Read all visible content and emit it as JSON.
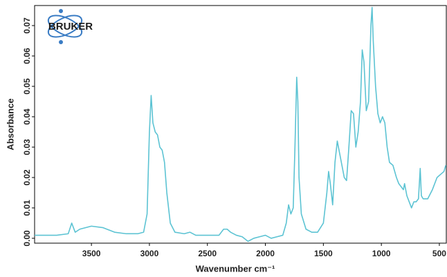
{
  "logo": "BRUKER",
  "chart_data": {
    "type": "line",
    "x_label": "Wavenumber  cm⁻¹",
    "y_label": "Absorbance",
    "color": "#5cc3d3",
    "x": [
      3990,
      3800,
      3700,
      3670,
      3640,
      3600,
      3500,
      3400,
      3300,
      3200,
      3100,
      3050,
      3020,
      3000,
      2985,
      2970,
      2950,
      2930,
      2910,
      2890,
      2870,
      2850,
      2820,
      2780,
      2700,
      2650,
      2600,
      2500,
      2400,
      2360,
      2330,
      2300,
      2250,
      2200,
      2150,
      2100,
      2050,
      2000,
      1950,
      1900,
      1850,
      1820,
      1800,
      1780,
      1760,
      1745,
      1730,
      1720,
      1710,
      1690,
      1650,
      1600,
      1550,
      1500,
      1470,
      1455,
      1440,
      1420,
      1400,
      1380,
      1360,
      1340,
      1320,
      1300,
      1280,
      1260,
      1240,
      1220,
      1200,
      1180,
      1165,
      1150,
      1130,
      1110,
      1090,
      1080,
      1070,
      1050,
      1030,
      1010,
      990,
      970,
      950,
      930,
      900,
      870,
      850,
      830,
      810,
      800,
      780,
      760,
      740,
      720,
      700,
      680,
      665,
      655,
      640,
      600,
      560,
      520,
      490,
      460,
      445
    ],
    "values": [
      0.001,
      0.001,
      0.0015,
      0.005,
      0.002,
      0.003,
      0.004,
      0.0035,
      0.002,
      0.0015,
      0.0015,
      0.002,
      0.008,
      0.035,
      0.047,
      0.038,
      0.035,
      0.034,
      0.03,
      0.029,
      0.025,
      0.015,
      0.005,
      0.002,
      0.0015,
      0.002,
      0.001,
      0.001,
      0.001,
      0.003,
      0.003,
      0.002,
      0.001,
      0.0005,
      -0.001,
      0.0,
      0.0005,
      0.001,
      0.0,
      0.0005,
      0.001,
      0.005,
      0.011,
      0.008,
      0.01,
      0.03,
      0.053,
      0.045,
      0.02,
      0.008,
      0.003,
      0.002,
      0.002,
      0.005,
      0.015,
      0.022,
      0.018,
      0.011,
      0.025,
      0.032,
      0.028,
      0.024,
      0.02,
      0.019,
      0.03,
      0.042,
      0.041,
      0.03,
      0.035,
      0.045,
      0.062,
      0.058,
      0.042,
      0.045,
      0.07,
      0.076,
      0.065,
      0.05,
      0.041,
      0.038,
      0.04,
      0.038,
      0.03,
      0.025,
      0.024,
      0.02,
      0.018,
      0.017,
      0.016,
      0.018,
      0.014,
      0.012,
      0.01,
      0.012,
      0.012,
      0.013,
      0.023,
      0.014,
      0.013,
      0.013,
      0.016,
      0.02,
      0.021,
      0.022,
      0.024
    ],
    "xlim": [
      3990,
      440
    ],
    "ylim": [
      -0.0016,
      0.0766
    ],
    "xticks": [
      3500,
      3000,
      2500,
      2000,
      1500,
      1000,
      500
    ],
    "yticks": [
      {
        "value": 0,
        "label": "0.00"
      },
      {
        "value": 0.01,
        "label": "0.01"
      },
      {
        "value": 0.02,
        "label": "0.02"
      },
      {
        "value": 0.03,
        "label": "0.03"
      },
      {
        "value": 0.04,
        "label": "0.04"
      },
      {
        "value": 0.05,
        "label": "0.05"
      },
      {
        "value": 0.06,
        "label": "0.06"
      },
      {
        "value": 0.07,
        "label": "0.07"
      }
    ]
  }
}
